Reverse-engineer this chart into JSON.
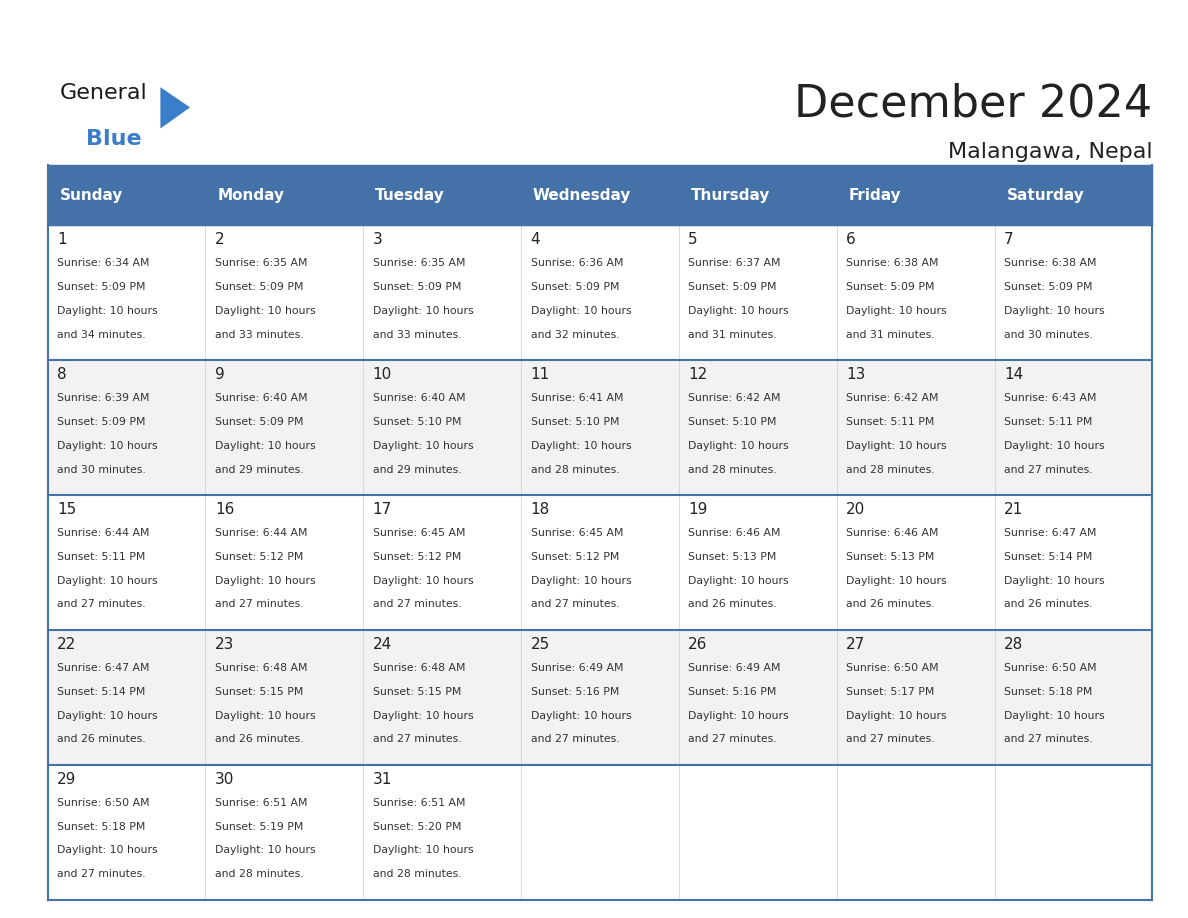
{
  "title": "December 2024",
  "subtitle": "Malangawa, Nepal",
  "header_color": "#4472A8",
  "header_text_color": "#FFFFFF",
  "cell_bg_color": "#FFFFFF",
  "alt_row_bg": "#F2F2F2",
  "border_color": "#4472A8",
  "days_of_week": [
    "Sunday",
    "Monday",
    "Tuesday",
    "Wednesday",
    "Thursday",
    "Friday",
    "Saturday"
  ],
  "text_color": "#333333",
  "day_num_color": "#222222",
  "calendar_data": [
    [
      {
        "day": 1,
        "sunrise": "6:34 AM",
        "sunset": "5:09 PM",
        "daylight_hours": 10,
        "daylight_minutes": 34
      },
      {
        "day": 2,
        "sunrise": "6:35 AM",
        "sunset": "5:09 PM",
        "daylight_hours": 10,
        "daylight_minutes": 33
      },
      {
        "day": 3,
        "sunrise": "6:35 AM",
        "sunset": "5:09 PM",
        "daylight_hours": 10,
        "daylight_minutes": 33
      },
      {
        "day": 4,
        "sunrise": "6:36 AM",
        "sunset": "5:09 PM",
        "daylight_hours": 10,
        "daylight_minutes": 32
      },
      {
        "day": 5,
        "sunrise": "6:37 AM",
        "sunset": "5:09 PM",
        "daylight_hours": 10,
        "daylight_minutes": 31
      },
      {
        "day": 6,
        "sunrise": "6:38 AM",
        "sunset": "5:09 PM",
        "daylight_hours": 10,
        "daylight_minutes": 31
      },
      {
        "day": 7,
        "sunrise": "6:38 AM",
        "sunset": "5:09 PM",
        "daylight_hours": 10,
        "daylight_minutes": 30
      }
    ],
    [
      {
        "day": 8,
        "sunrise": "6:39 AM",
        "sunset": "5:09 PM",
        "daylight_hours": 10,
        "daylight_minutes": 30
      },
      {
        "day": 9,
        "sunrise": "6:40 AM",
        "sunset": "5:09 PM",
        "daylight_hours": 10,
        "daylight_minutes": 29
      },
      {
        "day": 10,
        "sunrise": "6:40 AM",
        "sunset": "5:10 PM",
        "daylight_hours": 10,
        "daylight_minutes": 29
      },
      {
        "day": 11,
        "sunrise": "6:41 AM",
        "sunset": "5:10 PM",
        "daylight_hours": 10,
        "daylight_minutes": 28
      },
      {
        "day": 12,
        "sunrise": "6:42 AM",
        "sunset": "5:10 PM",
        "daylight_hours": 10,
        "daylight_minutes": 28
      },
      {
        "day": 13,
        "sunrise": "6:42 AM",
        "sunset": "5:11 PM",
        "daylight_hours": 10,
        "daylight_minutes": 28
      },
      {
        "day": 14,
        "sunrise": "6:43 AM",
        "sunset": "5:11 PM",
        "daylight_hours": 10,
        "daylight_minutes": 27
      }
    ],
    [
      {
        "day": 15,
        "sunrise": "6:44 AM",
        "sunset": "5:11 PM",
        "daylight_hours": 10,
        "daylight_minutes": 27
      },
      {
        "day": 16,
        "sunrise": "6:44 AM",
        "sunset": "5:12 PM",
        "daylight_hours": 10,
        "daylight_minutes": 27
      },
      {
        "day": 17,
        "sunrise": "6:45 AM",
        "sunset": "5:12 PM",
        "daylight_hours": 10,
        "daylight_minutes": 27
      },
      {
        "day": 18,
        "sunrise": "6:45 AM",
        "sunset": "5:12 PM",
        "daylight_hours": 10,
        "daylight_minutes": 27
      },
      {
        "day": 19,
        "sunrise": "6:46 AM",
        "sunset": "5:13 PM",
        "daylight_hours": 10,
        "daylight_minutes": 26
      },
      {
        "day": 20,
        "sunrise": "6:46 AM",
        "sunset": "5:13 PM",
        "daylight_hours": 10,
        "daylight_minutes": 26
      },
      {
        "day": 21,
        "sunrise": "6:47 AM",
        "sunset": "5:14 PM",
        "daylight_hours": 10,
        "daylight_minutes": 26
      }
    ],
    [
      {
        "day": 22,
        "sunrise": "6:47 AM",
        "sunset": "5:14 PM",
        "daylight_hours": 10,
        "daylight_minutes": 26
      },
      {
        "day": 23,
        "sunrise": "6:48 AM",
        "sunset": "5:15 PM",
        "daylight_hours": 10,
        "daylight_minutes": 26
      },
      {
        "day": 24,
        "sunrise": "6:48 AM",
        "sunset": "5:15 PM",
        "daylight_hours": 10,
        "daylight_minutes": 27
      },
      {
        "day": 25,
        "sunrise": "6:49 AM",
        "sunset": "5:16 PM",
        "daylight_hours": 10,
        "daylight_minutes": 27
      },
      {
        "day": 26,
        "sunrise": "6:49 AM",
        "sunset": "5:16 PM",
        "daylight_hours": 10,
        "daylight_minutes": 27
      },
      {
        "day": 27,
        "sunrise": "6:50 AM",
        "sunset": "5:17 PM",
        "daylight_hours": 10,
        "daylight_minutes": 27
      },
      {
        "day": 28,
        "sunrise": "6:50 AM",
        "sunset": "5:18 PM",
        "daylight_hours": 10,
        "daylight_minutes": 27
      }
    ],
    [
      {
        "day": 29,
        "sunrise": "6:50 AM",
        "sunset": "5:18 PM",
        "daylight_hours": 10,
        "daylight_minutes": 27
      },
      {
        "day": 30,
        "sunrise": "6:51 AM",
        "sunset": "5:19 PM",
        "daylight_hours": 10,
        "daylight_minutes": 28
      },
      {
        "day": 31,
        "sunrise": "6:51 AM",
        "sunset": "5:20 PM",
        "daylight_hours": 10,
        "daylight_minutes": 28
      },
      null,
      null,
      null,
      null
    ]
  ],
  "logo_text_general": "General",
  "logo_text_blue": "Blue",
  "logo_color_general": "#1a1a1a",
  "logo_color_blue": "#3a7dc9",
  "logo_triangle_color": "#3a7dc9"
}
